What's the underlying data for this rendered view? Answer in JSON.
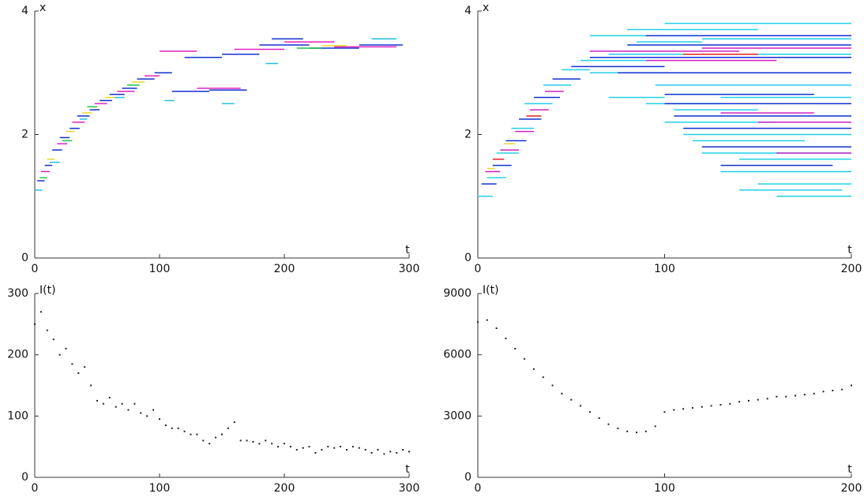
{
  "chart_data": [
    {
      "type": "segments",
      "xlabel": "t",
      "ylabel": "x",
      "xlim": [
        0,
        300
      ],
      "ylim": [
        0,
        4
      ],
      "xticks": [
        0,
        100,
        200,
        300
      ],
      "yticks": [
        0,
        2,
        4
      ],
      "series": [
        {
          "color": "#1030d0",
          "t0": [
            2,
            8,
            14,
            20,
            28,
            34,
            44,
            52,
            60,
            70,
            82,
            96,
            120,
            150,
            180,
            220,
            260,
            110,
            140,
            190
          ],
          "t1": [
            8,
            14,
            22,
            28,
            36,
            44,
            52,
            62,
            72,
            82,
            96,
            110,
            150,
            180,
            220,
            260,
            295,
            140,
            170,
            215
          ],
          "values": [
            1.25,
            1.5,
            1.75,
            1.95,
            2.1,
            2.3,
            2.4,
            2.55,
            2.65,
            2.75,
            2.9,
            3.0,
            3.25,
            3.3,
            3.45,
            3.4,
            3.45,
            2.7,
            2.72,
            3.55
          ]
        },
        {
          "color": "#e020c0",
          "t0": [
            5,
            18,
            30,
            48,
            66,
            88,
            100,
            130,
            200,
            240,
            160
          ],
          "t1": [
            12,
            26,
            40,
            58,
            80,
            100,
            130,
            165,
            240,
            290,
            200
          ],
          "values": [
            1.4,
            1.85,
            2.2,
            2.5,
            2.7,
            2.95,
            3.35,
            2.75,
            3.5,
            3.42,
            3.38
          ]
        },
        {
          "color": "#e8d820",
          "t0": [
            10,
            25,
            38,
            56,
            78,
            230
          ],
          "t1": [
            16,
            32,
            46,
            64,
            88,
            250
          ],
          "values": [
            1.6,
            2.05,
            2.35,
            2.6,
            2.85,
            3.44
          ]
        },
        {
          "color": "#20c040",
          "t0": [
            4,
            22,
            42,
            74,
            210
          ],
          "t1": [
            10,
            30,
            50,
            84,
            230
          ],
          "values": [
            1.3,
            1.9,
            2.45,
            2.8,
            3.4
          ]
        },
        {
          "color": "#20c0e0",
          "t0": [
            0,
            12,
            36,
            64,
            104,
            150,
            185,
            270
          ],
          "t1": [
            6,
            20,
            42,
            72,
            112,
            160,
            195,
            290
          ],
          "values": [
            1.1,
            1.55,
            2.25,
            2.6,
            2.55,
            2.5,
            3.15,
            3.55
          ]
        }
      ]
    },
    {
      "type": "segments",
      "xlabel": "t",
      "ylabel": "x",
      "xlim": [
        0,
        200
      ],
      "ylim": [
        0,
        4
      ],
      "xticks": [
        0,
        100,
        200
      ],
      "yticks": [
        0,
        2,
        4
      ],
      "series": [
        {
          "color": "#20d0e8",
          "t0": [
            0,
            5,
            10,
            18,
            25,
            35,
            45,
            55,
            60,
            80,
            100,
            120,
            70,
            90,
            95,
            100,
            110,
            120,
            130,
            150,
            160,
            140,
            105,
            60,
            70,
            130,
            115,
            140,
            85
          ],
          "t1": [
            8,
            15,
            22,
            30,
            40,
            50,
            60,
            90,
            120,
            150,
            200,
            200,
            100,
            130,
            200,
            160,
            200,
            200,
            200,
            200,
            200,
            200,
            150,
            100,
            200,
            200,
            175,
            195,
            120
          ],
          "values": [
            1.0,
            1.3,
            1.7,
            2.1,
            2.5,
            2.8,
            3.05,
            3.2,
            3.6,
            3.7,
            3.8,
            3.55,
            2.6,
            2.5,
            2.8,
            2.2,
            2.0,
            1.7,
            1.4,
            1.2,
            1.0,
            1.6,
            2.4,
            3.0,
            3.3,
            2.6,
            1.9,
            1.1,
            3.5
          ]
        },
        {
          "color": "#1030d0",
          "t0": [
            2,
            8,
            15,
            22,
            30,
            40,
            50,
            60,
            80,
            90,
            100,
            105,
            110,
            120,
            130,
            100,
            75
          ],
          "t1": [
            10,
            18,
            26,
            34,
            44,
            55,
            100,
            200,
            200,
            200,
            200,
            200,
            200,
            200,
            190,
            180,
            200
          ],
          "values": [
            1.2,
            1.5,
            1.9,
            2.25,
            2.6,
            2.9,
            3.1,
            3.25,
            3.45,
            3.6,
            2.5,
            2.3,
            2.1,
            1.8,
            1.5,
            2.65,
            3.0
          ]
        },
        {
          "color": "#d020c0",
          "t0": [
            4,
            12,
            20,
            28,
            36,
            60,
            120,
            130,
            150,
            90,
            160
          ],
          "t1": [
            12,
            22,
            30,
            38,
            46,
            140,
            200,
            180,
            200,
            160,
            200
          ],
          "values": [
            1.4,
            1.75,
            2.05,
            2.4,
            2.7,
            3.35,
            3.4,
            2.35,
            2.2,
            3.2,
            1.7
          ]
        },
        {
          "color": "#e02020",
          "t0": [
            8,
            26,
            110
          ],
          "t1": [
            14,
            34,
            150
          ],
          "values": [
            1.6,
            2.3,
            3.3
          ]
        },
        {
          "color": "#e8d820",
          "t0": [
            5,
            14
          ],
          "t1": [
            9,
            20
          ],
          "values": [
            1.45,
            1.85
          ]
        }
      ]
    },
    {
      "type": "scatter",
      "xlabel": "t",
      "ylabel": "I(t)",
      "xlim": [
        0,
        300
      ],
      "ylim": [
        0,
        300
      ],
      "xticks": [
        0,
        100,
        200,
        300
      ],
      "yticks": [
        0,
        100,
        200,
        300
      ],
      "x": [
        0,
        5,
        10,
        15,
        20,
        25,
        30,
        35,
        40,
        45,
        50,
        55,
        60,
        65,
        70,
        75,
        80,
        85,
        90,
        95,
        100,
        105,
        110,
        115,
        120,
        125,
        130,
        135,
        140,
        145,
        150,
        155,
        160,
        165,
        170,
        175,
        180,
        185,
        190,
        195,
        200,
        205,
        210,
        215,
        220,
        225,
        230,
        235,
        240,
        245,
        250,
        255,
        260,
        265,
        270,
        275,
        280,
        285,
        290,
        295,
        300
      ],
      "series": [
        {
          "color": "#222222",
          "values": [
            250,
            270,
            240,
            225,
            200,
            210,
            185,
            170,
            180,
            150,
            125,
            120,
            130,
            115,
            120,
            110,
            120,
            105,
            100,
            110,
            95,
            85,
            80,
            80,
            75,
            70,
            70,
            60,
            55,
            65,
            70,
            80,
            90,
            60,
            60,
            58,
            55,
            60,
            55,
            50,
            55,
            50,
            45,
            48,
            50,
            40,
            45,
            50,
            48,
            50,
            45,
            50,
            48,
            45,
            40,
            45,
            38,
            42,
            40,
            45,
            42
          ]
        }
      ]
    },
    {
      "type": "scatter",
      "xlabel": "t",
      "ylabel": "I(t)",
      "xlim": [
        0,
        200
      ],
      "ylim": [
        0,
        9000
      ],
      "xticks": [
        0,
        100,
        200
      ],
      "yticks": [
        0,
        3000,
        6000,
        9000
      ],
      "x": [
        0,
        5,
        10,
        15,
        20,
        25,
        30,
        35,
        40,
        45,
        50,
        55,
        60,
        65,
        70,
        75,
        80,
        85,
        90,
        95,
        100,
        105,
        110,
        115,
        120,
        125,
        130,
        135,
        140,
        145,
        150,
        155,
        160,
        165,
        170,
        175,
        180,
        185,
        190,
        195,
        200
      ],
      "series": [
        {
          "color": "#222222",
          "values": [
            7600,
            7700,
            7300,
            6800,
            6300,
            5800,
            5300,
            4900,
            4500,
            4100,
            3800,
            3500,
            3200,
            2900,
            2600,
            2400,
            2250,
            2200,
            2250,
            2500,
            3200,
            3300,
            3350,
            3400,
            3450,
            3500,
            3550,
            3600,
            3700,
            3750,
            3800,
            3850,
            3950,
            3950,
            4000,
            4050,
            4100,
            4200,
            4250,
            4300,
            4500
          ]
        }
      ]
    }
  ]
}
